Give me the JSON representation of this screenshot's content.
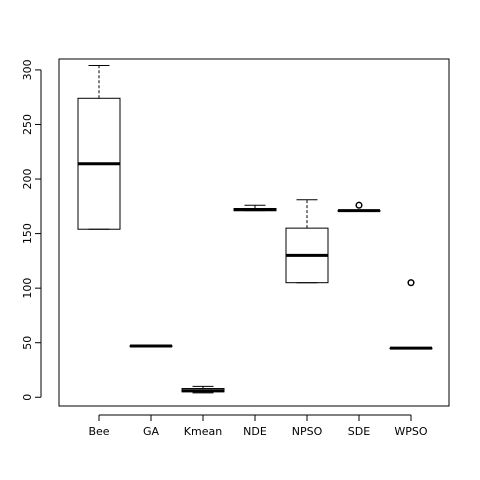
{
  "chart_data": {
    "type": "boxplot",
    "title": "",
    "xlabel": "",
    "ylabel": "",
    "ylim": [
      -8,
      310
    ],
    "yticks": [
      0,
      50,
      100,
      150,
      200,
      250,
      300
    ],
    "categories": [
      "Bee",
      "GA",
      "Kmean",
      "NDE",
      "NPSO",
      "SDE",
      "WPSO"
    ],
    "boxes": [
      {
        "name": "Bee",
        "whisker_low": 154,
        "q1": 154,
        "median": 214,
        "q3": 274,
        "whisker_high": 304,
        "outliers": []
      },
      {
        "name": "GA",
        "whisker_low": 47,
        "q1": 47,
        "median": 47,
        "q3": 47,
        "whisker_high": 47,
        "outliers": []
      },
      {
        "name": "Kmean",
        "whisker_low": 4,
        "q1": 5,
        "median": 6,
        "q3": 8,
        "whisker_high": 10,
        "outliers": []
      },
      {
        "name": "NDE",
        "whisker_low": 171,
        "q1": 171,
        "median": 172,
        "q3": 173,
        "whisker_high": 176,
        "outliers": []
      },
      {
        "name": "NPSO",
        "whisker_low": 105,
        "q1": 105,
        "median": 130,
        "q3": 155,
        "whisker_high": 181,
        "outliers": []
      },
      {
        "name": "SDE",
        "whisker_low": 171,
        "q1": 171,
        "median": 171,
        "q3": 171,
        "whisker_high": 171,
        "outliers": [
          176
        ]
      },
      {
        "name": "WPSO",
        "whisker_low": 45,
        "q1": 45,
        "median": 45,
        "q3": 45,
        "whisker_high": 45,
        "outliers": [
          105
        ]
      }
    ],
    "grid": false,
    "legend": "none"
  }
}
